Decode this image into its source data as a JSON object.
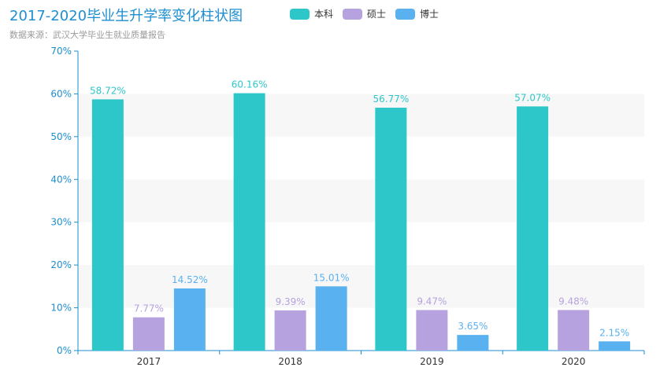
{
  "colors": {
    "title": "#1e8ed1",
    "subtitle": "#9a9a9a",
    "axis": "#1e8ed1",
    "band": "#f7f7f7"
  },
  "chart_data": {
    "type": "bar",
    "title": "2017-2020毕业生升学率变化柱状图",
    "subtitle": "数据来源：武汉大学毕业生就业质量报告",
    "categories": [
      "2017",
      "2018",
      "2019",
      "2020"
    ],
    "y_ticks": [
      "0%",
      "10%",
      "20%",
      "30%",
      "40%",
      "50%",
      "60%",
      "70%"
    ],
    "ylim": [
      0,
      70
    ],
    "grid": "alternating bands",
    "legend_position": "top-center",
    "series": [
      {
        "name": "本科",
        "color": "#2ec7c9",
        "values": [
          58.72,
          60.16,
          56.77,
          57.07
        ],
        "labels": [
          "58.72%",
          "60.16%",
          "56.77%",
          "57.07%"
        ]
      },
      {
        "name": "硕士",
        "color": "#b6a2de",
        "values": [
          7.77,
          9.39,
          9.47,
          9.48
        ],
        "labels": [
          "7.77%",
          "9.39%",
          "9.47%",
          "9.48%"
        ]
      },
      {
        "name": "博士",
        "color": "#5ab1ef",
        "values": [
          14.52,
          15.01,
          3.65,
          2.15
        ],
        "labels": [
          "14.52%",
          "15.01%",
          "3.65%",
          "2.15%"
        ]
      }
    ]
  }
}
